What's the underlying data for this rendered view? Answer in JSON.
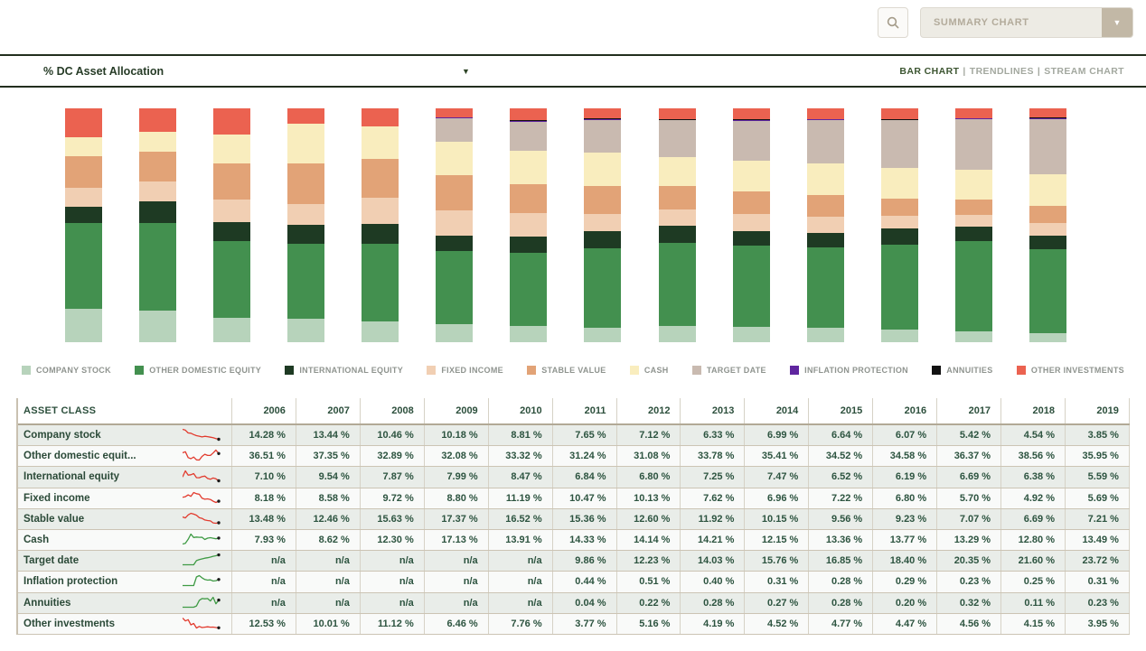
{
  "toolbar": {
    "search_icon": "magnifier-icon",
    "summary_select": {
      "value": "SUMMARY CHART",
      "arrow": "▼"
    }
  },
  "view_bar": {
    "title": "% DC Asset Allocation",
    "title_caret": "▼",
    "views": [
      {
        "label": "BAR CHART",
        "active": true
      },
      {
        "label": "TRENDLINES",
        "active": false
      },
      {
        "label": "STREAM CHART",
        "active": false
      }
    ]
  },
  "chart_data": {
    "type": "bar",
    "stacked": true,
    "unit": "%",
    "ylim": [
      0,
      100
    ],
    "grid": false,
    "legend_position": "bottom",
    "categories": [
      "2006",
      "2007",
      "2008",
      "2009",
      "2010",
      "2011",
      "2012",
      "2013",
      "2014",
      "2015",
      "2016",
      "2017",
      "2018",
      "2019"
    ],
    "series": [
      {
        "name": "COMPANY STOCK",
        "color": "#b7d3bb",
        "values": [
          14.28,
          13.44,
          10.46,
          10.18,
          8.81,
          7.65,
          7.12,
          6.33,
          6.99,
          6.64,
          6.07,
          5.42,
          4.54,
          3.85
        ]
      },
      {
        "name": "OTHER DOMESTIC EQUITY",
        "color": "#43904f",
        "values": [
          36.51,
          37.35,
          32.89,
          32.08,
          33.32,
          31.24,
          31.08,
          33.78,
          35.41,
          34.52,
          34.58,
          36.37,
          38.56,
          35.95
        ]
      },
      {
        "name": "INTERNATIONAL EQUITY",
        "color": "#1e3a23",
        "values": [
          7.1,
          9.54,
          7.87,
          7.99,
          8.47,
          6.84,
          6.8,
          7.25,
          7.47,
          6.52,
          6.19,
          6.69,
          6.38,
          5.59
        ]
      },
      {
        "name": "FIXED INCOME",
        "color": "#f1cfb3",
        "values": [
          8.18,
          8.58,
          9.72,
          8.8,
          11.19,
          10.47,
          10.13,
          7.62,
          6.96,
          7.22,
          6.8,
          5.7,
          4.92,
          5.69
        ]
      },
      {
        "name": "STABLE VALUE",
        "color": "#e2a377",
        "values": [
          13.48,
          12.46,
          15.63,
          17.37,
          16.52,
          15.36,
          12.6,
          11.92,
          10.15,
          9.56,
          9.23,
          7.07,
          6.69,
          7.21
        ]
      },
      {
        "name": "CASH",
        "color": "#f9edbe",
        "values": [
          7.93,
          8.62,
          12.3,
          17.13,
          13.91,
          14.33,
          14.14,
          14.21,
          12.15,
          13.36,
          13.77,
          13.29,
          12.8,
          13.49
        ]
      },
      {
        "name": "TARGET DATE",
        "color": "#c9bab0",
        "values": [
          null,
          null,
          null,
          null,
          null,
          9.86,
          12.23,
          14.03,
          15.76,
          16.85,
          18.4,
          20.35,
          21.6,
          23.72
        ]
      },
      {
        "name": "INFLATION PROTECTION",
        "color": "#5f259f",
        "values": [
          null,
          null,
          null,
          null,
          null,
          0.44,
          0.51,
          0.4,
          0.31,
          0.28,
          0.29,
          0.23,
          0.25,
          0.31
        ]
      },
      {
        "name": "ANNUITIES",
        "color": "#121212",
        "values": [
          null,
          null,
          null,
          null,
          null,
          0.04,
          0.22,
          0.28,
          0.27,
          0.28,
          0.2,
          0.32,
          0.11,
          0.23
        ]
      },
      {
        "name": "OTHER INVESTMENTS",
        "color": "#eb6250",
        "values": [
          12.53,
          10.01,
          11.12,
          6.46,
          7.76,
          3.77,
          5.16,
          4.19,
          4.52,
          4.77,
          4.47,
          4.56,
          4.15,
          3.95
        ]
      }
    ]
  },
  "table": {
    "first_header": "ASSET CLASS",
    "na_label": "n/a",
    "rows": [
      {
        "label": "Company stock",
        "spark_color": "#e23b2e"
      },
      {
        "label": "Other domestic equit...",
        "spark_color": "#e23b2e"
      },
      {
        "label": "International equity",
        "spark_color": "#e23b2e"
      },
      {
        "label": "Fixed income",
        "spark_color": "#e23b2e"
      },
      {
        "label": "Stable value",
        "spark_color": "#e23b2e"
      },
      {
        "label": "Cash",
        "spark_color": "#3f9b45"
      },
      {
        "label": "Target date",
        "spark_color": "#3f9b45"
      },
      {
        "label": "Inflation protection",
        "spark_color": "#3f9b45"
      },
      {
        "label": "Annuities",
        "spark_color": "#3f9b45"
      },
      {
        "label": "Other investments",
        "spark_color": "#e23b2e"
      }
    ]
  }
}
